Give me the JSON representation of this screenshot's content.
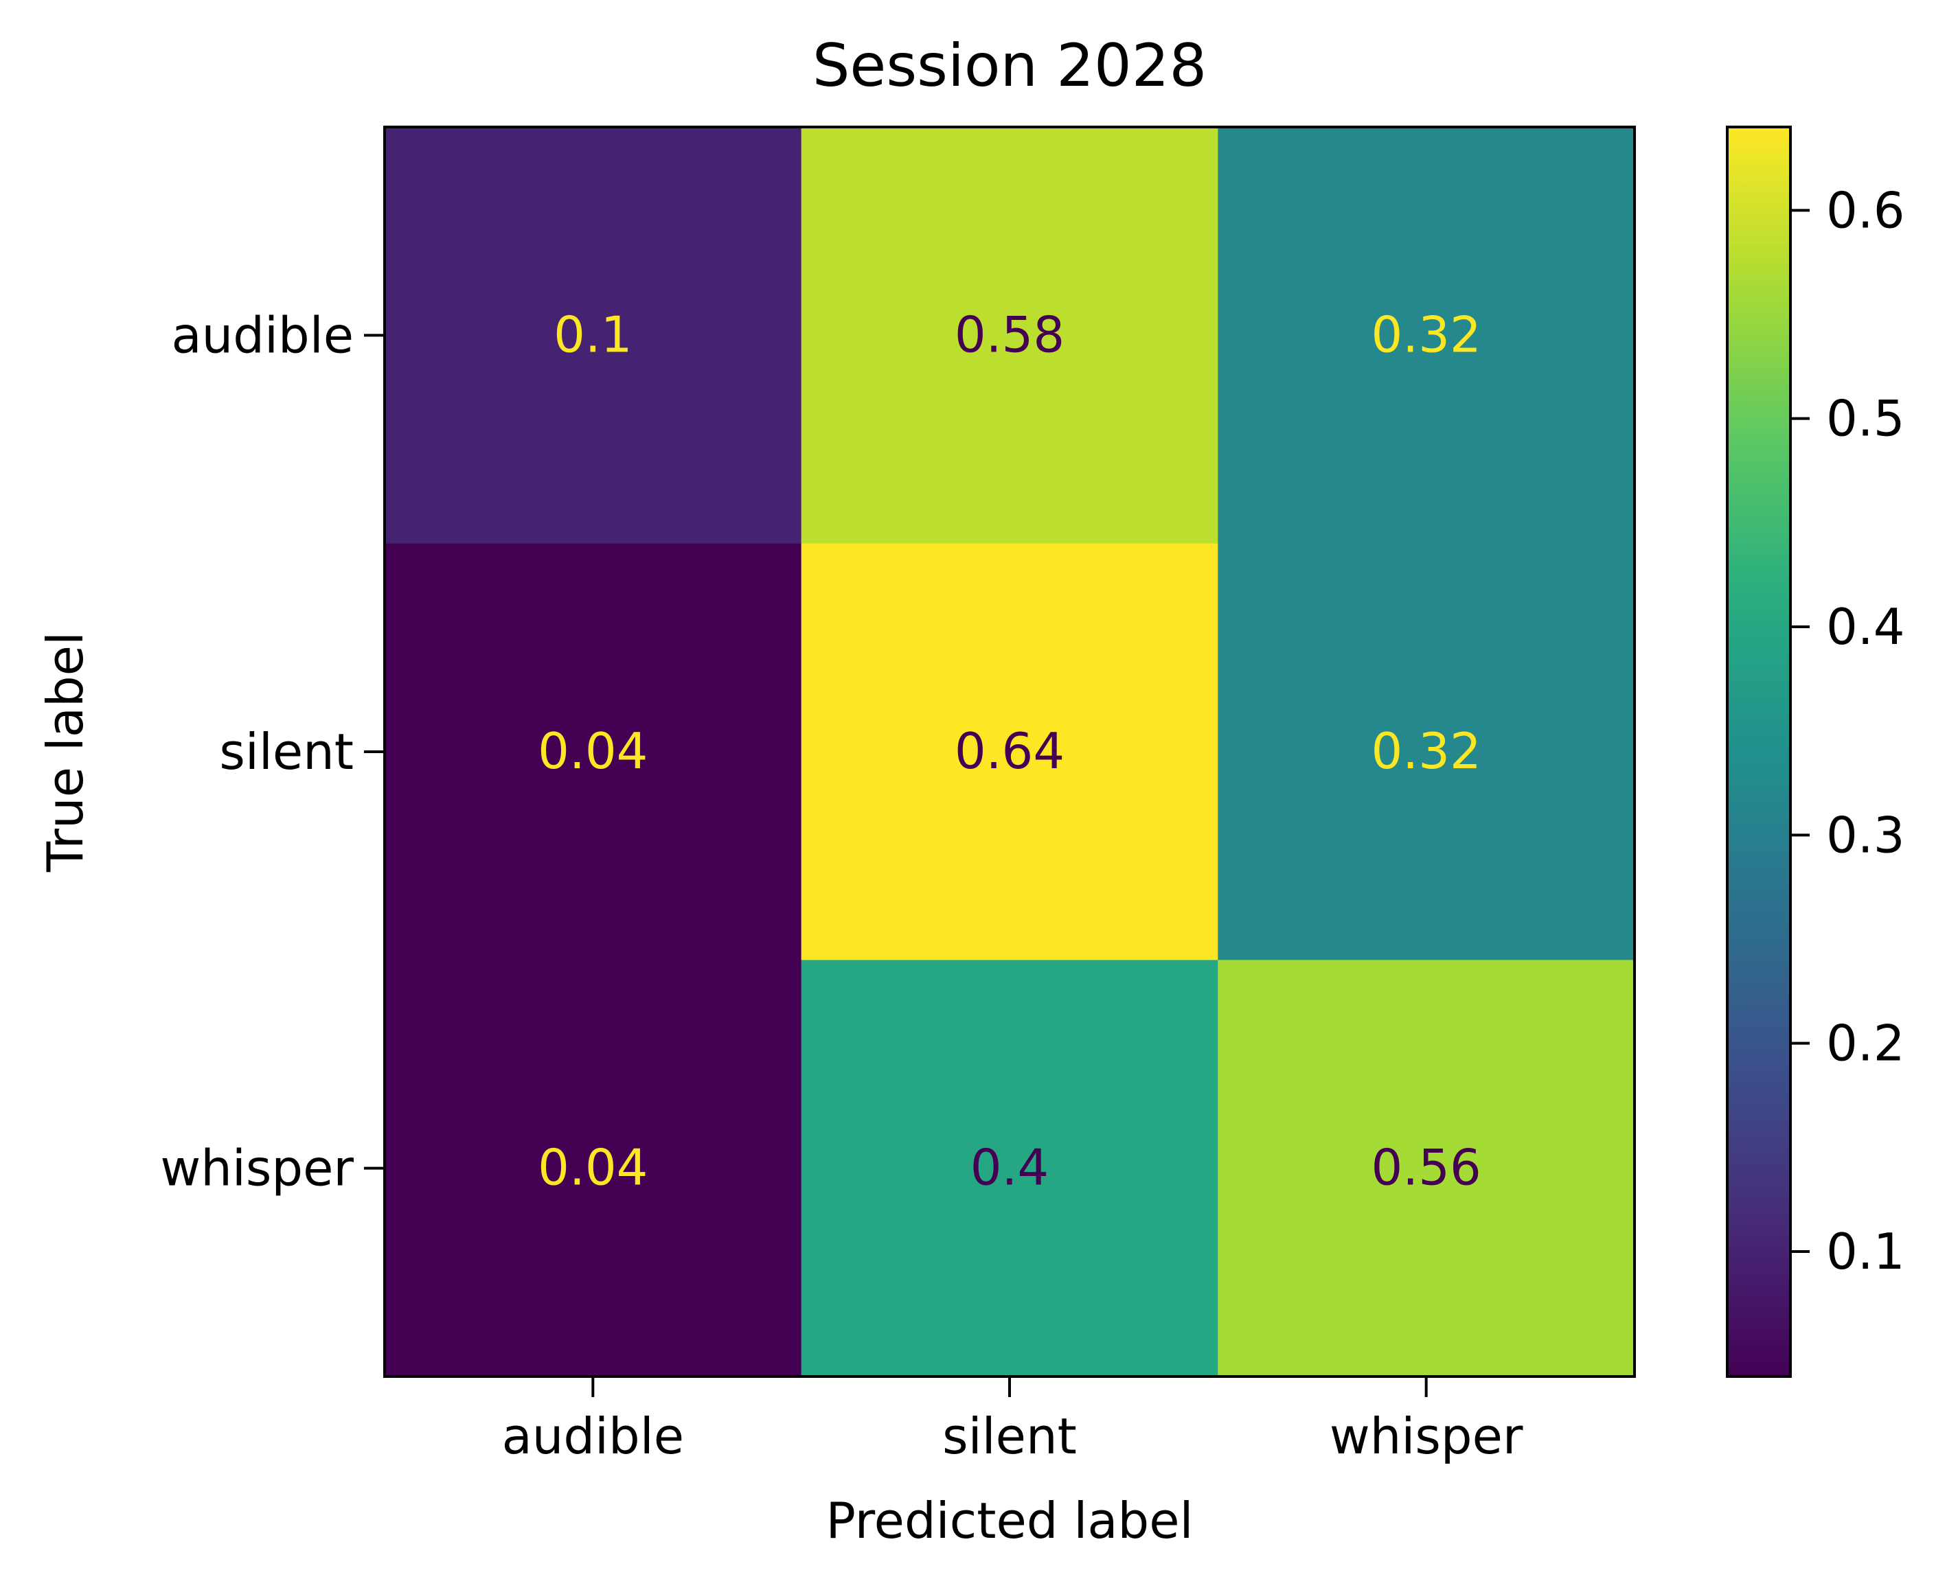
{
  "chart_data": {
    "type": "heatmap",
    "title": "Session 2028",
    "xlabel": "Predicted label",
    "ylabel": "True label",
    "x_categories": [
      "audible",
      "silent",
      "whisper"
    ],
    "y_categories": [
      "audible",
      "silent",
      "whisper"
    ],
    "values": [
      [
        0.1,
        0.58,
        0.32
      ],
      [
        0.04,
        0.64,
        0.32
      ],
      [
        0.04,
        0.4,
        0.56
      ]
    ],
    "cell_labels": [
      [
        "0.1",
        "0.58",
        "0.32"
      ],
      [
        "0.04",
        "0.64",
        "0.32"
      ],
      [
        "0.04",
        "0.4",
        "0.56"
      ]
    ],
    "colormap": "viridis",
    "colorbar": {
      "range": [
        0.04,
        0.64
      ],
      "ticks": [
        0.1,
        0.2,
        0.3,
        0.4,
        0.5,
        0.6
      ],
      "tick_labels": [
        "0.1",
        "0.2",
        "0.3",
        "0.4",
        "0.5",
        "0.6"
      ]
    },
    "text_colors": {
      "on_dark": "#fde725",
      "on_light": "#440154"
    },
    "grid": false
  }
}
